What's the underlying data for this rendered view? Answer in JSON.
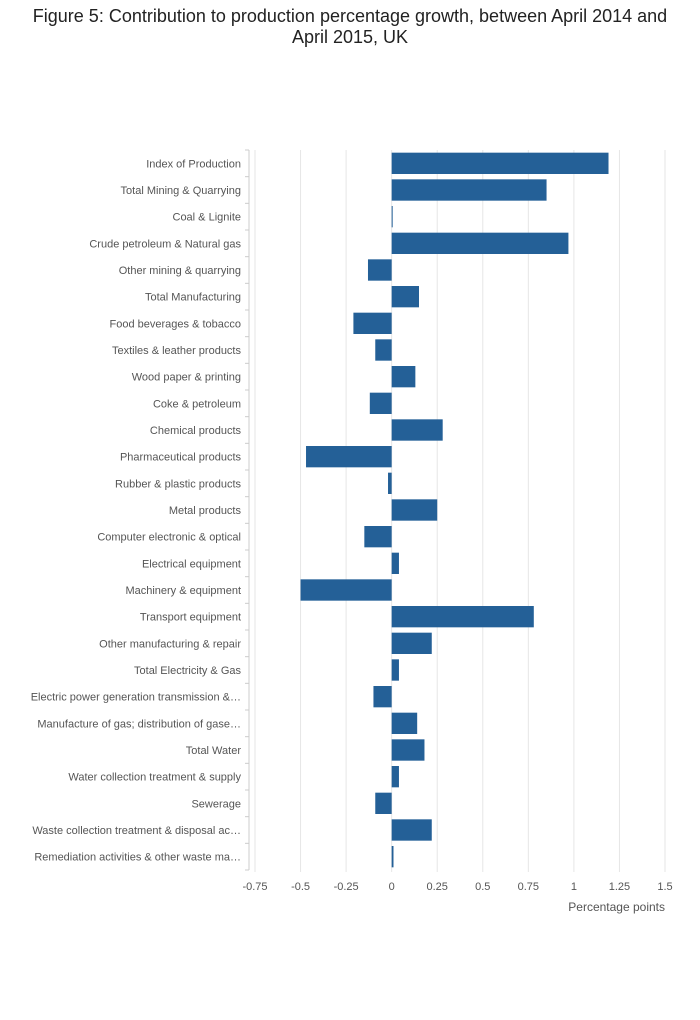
{
  "chart_data": {
    "type": "bar",
    "orientation": "horizontal",
    "title": "Figure 5: Contribution to production percentage growth, between April 2014 and April 2015, UK",
    "xlabel": "Percentage points",
    "ylabel": "",
    "xlim": [
      -0.75,
      1.5
    ],
    "xticks": [
      "-0.75",
      "-0.5",
      "-0.25",
      "0",
      "0.25",
      "0.5",
      "0.75",
      "1",
      "1.25",
      "1.5"
    ],
    "grid": true,
    "bar_color": "#246097",
    "categories": [
      "Index of Production",
      "Total Mining & Quarrying",
      "Coal & Lignite",
      "Crude petroleum & Natural gas",
      "Other mining & quarrying",
      "Total Manufacturing",
      "Food beverages & tobacco",
      "Textiles & leather products",
      "Wood paper & printing",
      "Coke & petroleum",
      "Chemical products",
      "Pharmaceutical products",
      "Rubber & plastic products",
      "Metal products",
      "Computer electronic & optical",
      "Electrical equipment",
      "Machinery & equipment",
      "Transport equipment",
      "Other manufacturing & repair",
      "Total Electricity & Gas",
      "Electric power generation transmission &…",
      "Manufacture of gas; distribution of gase…",
      "Total Water",
      "Water collection treatment & supply",
      "Sewerage",
      "Waste collection treatment & disposal ac…",
      "Remediation activities & other waste ma…"
    ],
    "values": [
      1.19,
      0.85,
      0.0,
      0.97,
      -0.13,
      0.15,
      -0.21,
      -0.09,
      0.13,
      -0.12,
      0.28,
      -0.47,
      -0.02,
      0.25,
      -0.15,
      0.04,
      -0.5,
      0.78,
      0.22,
      0.04,
      -0.1,
      0.14,
      0.18,
      0.04,
      -0.09,
      0.22,
      0.01
    ]
  }
}
